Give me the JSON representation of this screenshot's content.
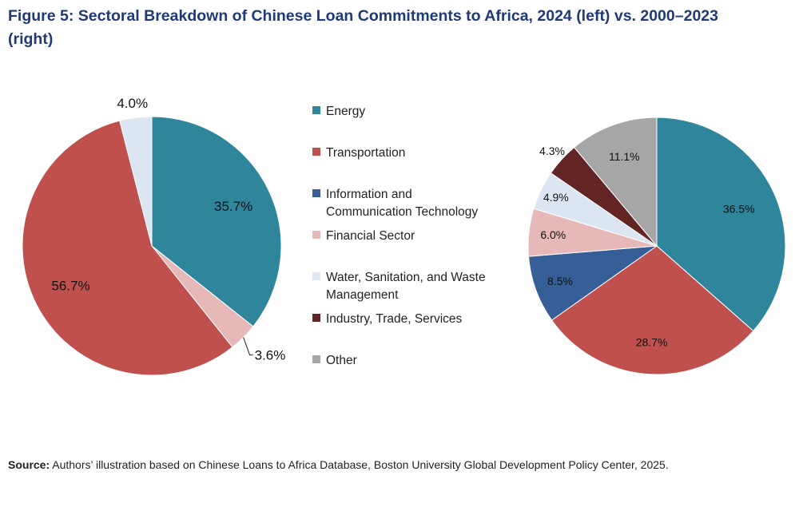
{
  "title": "Figure 5: Sectoral Breakdown of Chinese Loan Commitments to Africa, 2024 (left) vs. 2000–2023 (right)",
  "source": {
    "label": "Source:",
    "text": "Authors’ illustration based on Chinese Loans to Africa Database, Boston University Global Development Policy Center, 2025."
  },
  "colors": {
    "Energy": "#2e859c",
    "Transportation": "#c0504d",
    "Information and Communication Technology": "#355f96",
    "Financial Sector": "#e6b9b8",
    "Water, Sanitation, and Waste Management": "#dce6f2",
    "Industry, Trade, Services": "#632523",
    "Other": "#a6a6a6"
  },
  "legend": [
    {
      "lines": [
        "Energy"
      ],
      "series": "Energy"
    },
    {
      "lines": [
        "Transportation"
      ],
      "series": "Transportation"
    },
    {
      "lines": [
        "Information and",
        "Communication Technology"
      ],
      "series": "Information and Communication Technology"
    },
    {
      "lines": [
        "Financial Sector"
      ],
      "series": "Financial Sector"
    },
    {
      "lines": [
        "Water, Sanitation, and Waste",
        "Management"
      ],
      "series": "Water, Sanitation, and Waste Management"
    },
    {
      "lines": [
        "Industry, Trade, Services"
      ],
      "series": "Industry, Trade, Services"
    },
    {
      "lines": [
        "Other"
      ],
      "series": "Other"
    }
  ],
  "chart_data": [
    {
      "type": "pie",
      "title": "",
      "slices": [
        {
          "label": "Energy",
          "value": 35.7,
          "text": "35.7%"
        },
        {
          "label": "Financial Sector",
          "value": 3.6,
          "text": "3.6%"
        },
        {
          "label": "Transportation",
          "value": 56.7,
          "text": "56.7%"
        },
        {
          "label": "Water, Sanitation, and Waste Management",
          "value": 4.0,
          "text": "4.0%"
        }
      ]
    },
    {
      "type": "pie",
      "title": "",
      "slices": [
        {
          "label": "Energy",
          "value": 36.5,
          "text": "36.5%"
        },
        {
          "label": "Transportation",
          "value": 28.7,
          "text": "28.7%"
        },
        {
          "label": "Information and Communication Technology",
          "value": 8.5,
          "text": "8.5%"
        },
        {
          "label": "Financial Sector",
          "value": 6.0,
          "text": "6.0%"
        },
        {
          "label": "Water, Sanitation, and Waste Management",
          "value": 4.9,
          "text": "4.9%"
        },
        {
          "label": "Industry, Trade, Services",
          "value": 4.3,
          "text": "4.3%"
        },
        {
          "label": "Other",
          "value": 11.1,
          "text": "11.1%"
        }
      ]
    }
  ]
}
